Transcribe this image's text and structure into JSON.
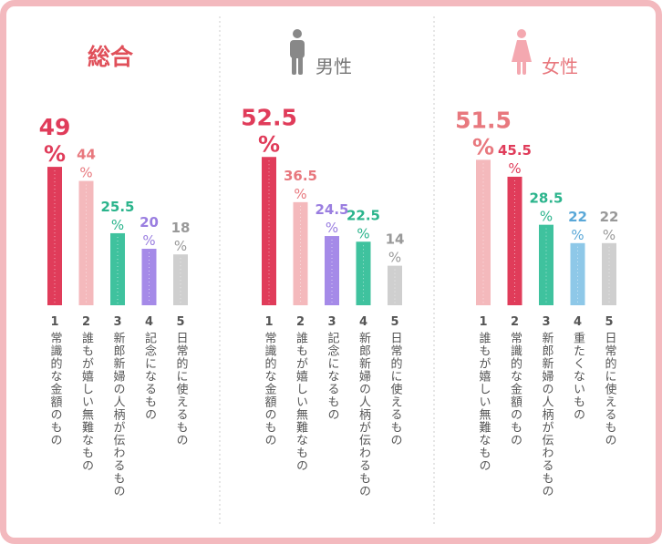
{
  "chart_data": [
    {
      "type": "bar",
      "title": "総合",
      "unit": "%",
      "categories": [
        {
          "rank": "1",
          "label": "常識的な金額のもの"
        },
        {
          "rank": "2",
          "label": "誰もが嬉しい無難なもの"
        },
        {
          "rank": "3",
          "label": "新郎新婦の人柄が伝わるもの"
        },
        {
          "rank": "4",
          "label": "記念になるもの"
        },
        {
          "rank": "5",
          "label": "日常的に使えるもの"
        }
      ],
      "values": [
        49,
        44,
        25.5,
        20,
        18
      ],
      "value_labels": [
        "49",
        "44",
        "25.5",
        "20",
        "18"
      ],
      "colors": [
        "#e03c5a",
        "#f4b9bc",
        "#3fc29e",
        "#a58ae8",
        "#cfcfcf"
      ],
      "label_colors": [
        "#e03c5a",
        "#e8787e",
        "#2bb48c",
        "#9a7ee0",
        "#999999"
      ],
      "title_color": "#e0505a",
      "ylim": [
        0,
        55
      ]
    },
    {
      "type": "bar",
      "title": "男性",
      "icon": "male-icon",
      "unit": "%",
      "categories": [
        {
          "rank": "1",
          "label": "常識的な金額のもの"
        },
        {
          "rank": "2",
          "label": "誰もが嬉しい無難なもの"
        },
        {
          "rank": "3",
          "label": "記念になるもの"
        },
        {
          "rank": "4",
          "label": "新郎新婦の人柄が伝わるもの"
        },
        {
          "rank": "5",
          "label": "日常的に使えるもの"
        }
      ],
      "values": [
        52.5,
        36.5,
        24.5,
        22.5,
        14
      ],
      "value_labels": [
        "52.5",
        "36.5",
        "24.5",
        "22.5",
        "14"
      ],
      "colors": [
        "#e03c5a",
        "#f4b9bc",
        "#a58ae8",
        "#3fc29e",
        "#cfcfcf"
      ],
      "label_colors": [
        "#e03c5a",
        "#e8787e",
        "#9a7ee0",
        "#2bb48c",
        "#999999"
      ],
      "title_color": "#777777",
      "ylim": [
        0,
        55
      ]
    },
    {
      "type": "bar",
      "title": "女性",
      "icon": "female-icon",
      "unit": "%",
      "categories": [
        {
          "rank": "1",
          "label": "誰もが嬉しい無難なもの"
        },
        {
          "rank": "2",
          "label": "常識的な金額のもの"
        },
        {
          "rank": "3",
          "label": "新郎新婦の人柄が伝わるもの"
        },
        {
          "rank": "4",
          "label": "重たくないもの"
        },
        {
          "rank": "5",
          "label": "日常的に使えるもの"
        }
      ],
      "values": [
        51.5,
        45.5,
        28.5,
        22,
        22
      ],
      "value_labels": [
        "51.5",
        "45.5",
        "28.5",
        "22",
        "22"
      ],
      "colors": [
        "#f4b9bc",
        "#e03c5a",
        "#3fc29e",
        "#8ec8e8",
        "#cfcfcf"
      ],
      "label_colors": [
        "#e8787e",
        "#e03c5a",
        "#2bb48c",
        "#5aa8d8",
        "#999999"
      ],
      "title_color": "#e8787e",
      "ylim": [
        0,
        55
      ]
    }
  ],
  "colors": {
    "frame": "#f3b9be",
    "divider": "#cccccc",
    "category_text": "#555555",
    "male_icon": "#888888",
    "female_icon": "#f4a8b0"
  }
}
